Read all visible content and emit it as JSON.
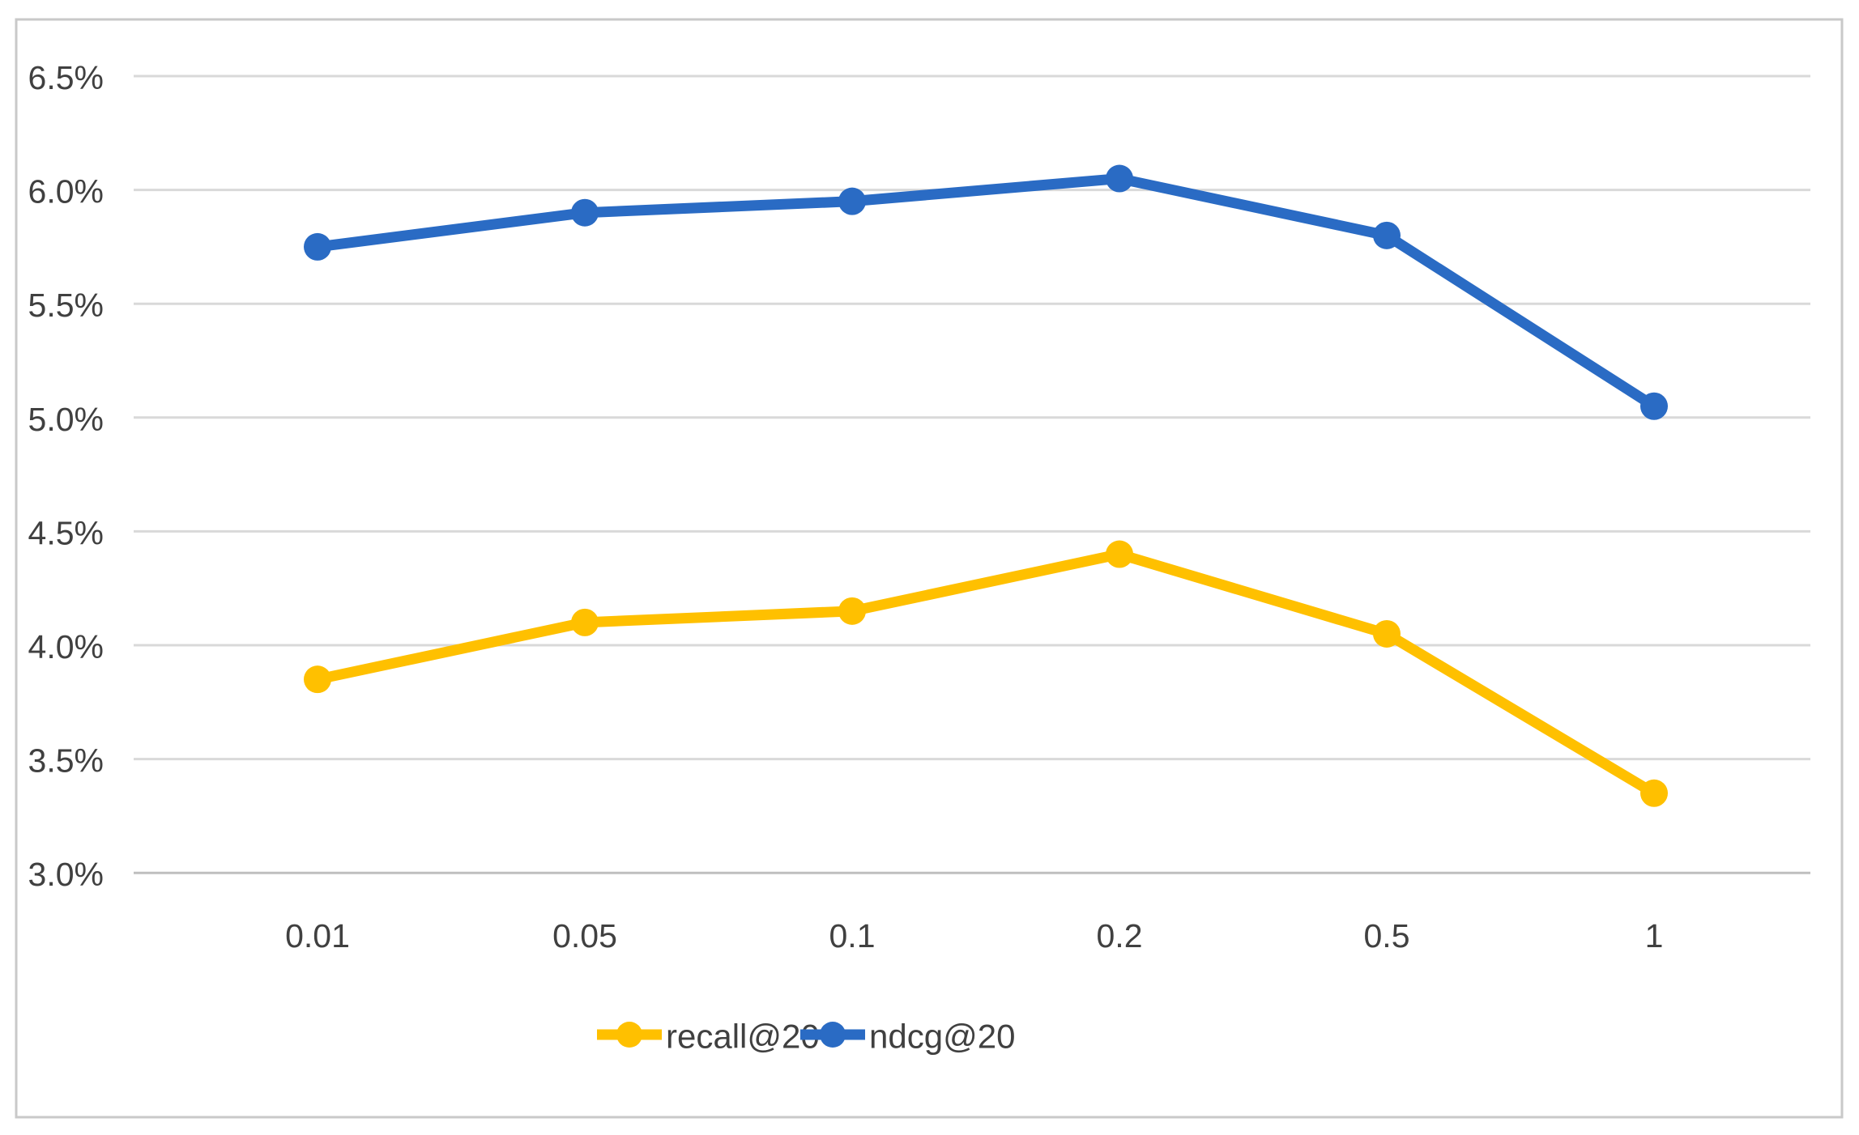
{
  "chart_data": {
    "type": "line",
    "title": "",
    "xlabel": "",
    "ylabel": "",
    "x_categories": [
      "0.01",
      "0.05",
      "0.1",
      "0.2",
      "0.5",
      "1"
    ],
    "y_axis": {
      "min": 3.0,
      "max": 6.5,
      "step": 0.5,
      "ticks": [
        {
          "value": 6.5,
          "label": "6.5%"
        },
        {
          "value": 6.0,
          "label": "6.0%"
        },
        {
          "value": 5.5,
          "label": "5.5%"
        },
        {
          "value": 5.0,
          "label": "5.0%"
        },
        {
          "value": 4.5,
          "label": "4.5%"
        },
        {
          "value": 4.0,
          "label": "4.0%"
        },
        {
          "value": 3.5,
          "label": "3.5%"
        },
        {
          "value": 3.0,
          "label": "3.0%"
        }
      ]
    },
    "series": [
      {
        "name": "recall@20",
        "color": "#FFC000",
        "values": [
          3.85,
          4.1,
          4.15,
          4.4,
          4.05,
          3.35
        ]
      },
      {
        "name": "ndcg@20",
        "color": "#2A6BC4",
        "values": [
          5.75,
          5.9,
          5.95,
          6.05,
          5.8,
          5.05
        ]
      }
    ],
    "grid": true,
    "legend_position": "bottom-center"
  },
  "colors": {
    "background": "#FFFFFF",
    "chart_border": "#C9C9C9",
    "gridline": "#D9D9D9",
    "axis_line": "#BFBFBF",
    "text": "#404040",
    "series_recall": "#FFC000",
    "series_ndcg": "#2A6BC4"
  }
}
